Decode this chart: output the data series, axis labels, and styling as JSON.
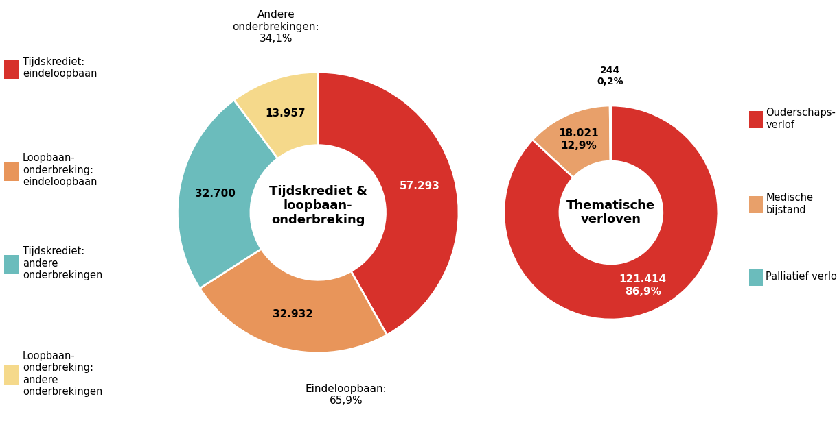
{
  "chart1": {
    "title": "Tijdskrediet &\nloopbaan-\nonderbreking",
    "values": [
      57293,
      32932,
      32700,
      13957
    ],
    "colors": [
      "#d7312b",
      "#e8955a",
      "#6bbcbc",
      "#f5d98b"
    ],
    "labels": [
      "57.293",
      "32.932",
      "32.700",
      "13.957"
    ],
    "legend_labels": [
      "Tijdskrediet:\neindeloopbaan",
      "Loopbaan-\nonderbreking:\neindeloopbaan",
      "Tijdskrediet:\nandere\nonderbrekingen",
      "Loopbaan-\nonderbreking:\nandere\nonderbrekingen"
    ],
    "annotation_top": "Andere\nonderbrekingen:\n34,1%",
    "annotation_bottom": "Eindeloopbaan:\n65,9%"
  },
  "chart2": {
    "title": "Thematische\nverloven",
    "values": [
      121414,
      18021,
      244
    ],
    "colors": [
      "#d7312b",
      "#e8a06a",
      "#6bbcbc"
    ],
    "label_lines": [
      [
        "121.414",
        "86,9%"
      ],
      [
        "18.021",
        "12,9%"
      ],
      [
        "244",
        "0,2%"
      ]
    ],
    "legend_labels": [
      "Ouderschaps-\nverlof",
      "Medische\nbijstand",
      "Palliatief verlof"
    ]
  },
  "bg_color": "#ffffff",
  "title_fontsize": 13,
  "label_fontsize": 11,
  "legend_fontsize": 10.5,
  "annotation_fontsize": 11
}
